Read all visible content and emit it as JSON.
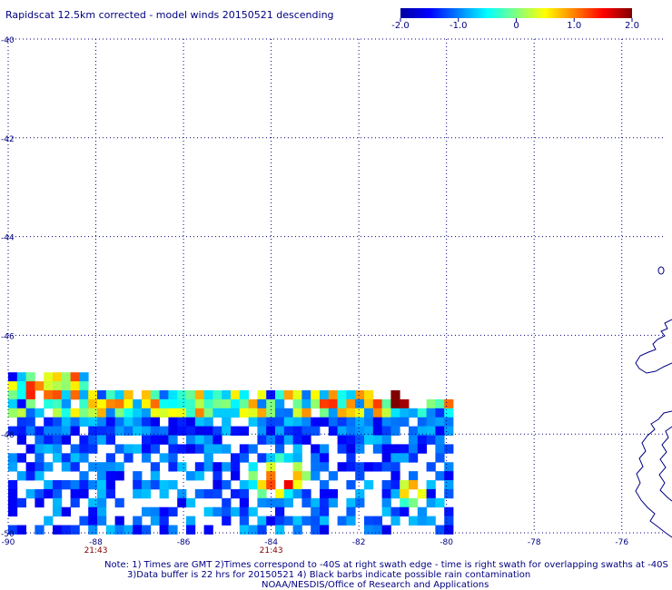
{
  "title": "Rapidscat 12.5km corrected - model winds 20150521 descending",
  "colorbar": {
    "stops": [
      "#0000a0",
      "#0000ff",
      "#0080ff",
      "#00ffff",
      "#80ff80",
      "#ffff00",
      "#ff8000",
      "#ff0000",
      "#800000"
    ],
    "ticks": [
      {
        "label": "-2.0",
        "value": -2.0
      },
      {
        "label": "-1.0",
        "value": -1.0
      },
      {
        "label": "0",
        "value": 0
      },
      {
        "label": "1.0",
        "value": 1.0
      },
      {
        "label": "2.0",
        "value": 2.0
      }
    ],
    "range": [
      -2.0,
      2.0
    ]
  },
  "map": {
    "lon_range": [
      -90,
      -75
    ],
    "lat_range": [
      -40,
      -50
    ],
    "grid_color": "#000080",
    "coast_color": "#000080",
    "lon_ticks": [
      {
        "label": "-90",
        "value": -90
      },
      {
        "label": "-88",
        "value": -88
      },
      {
        "label": "-86",
        "value": -86
      },
      {
        "label": "-84",
        "value": -84
      },
      {
        "label": "-82",
        "value": -82
      },
      {
        "label": "-80",
        "value": -80
      },
      {
        "label": "-78",
        "value": -78
      },
      {
        "label": "-76",
        "value": -76
      }
    ],
    "lat_ticks": [
      {
        "label": "-40",
        "value": -40
      },
      {
        "label": "-42",
        "value": -42
      },
      {
        "label": "-44",
        "value": -44
      },
      {
        "label": "-46",
        "value": -46
      },
      {
        "label": "-48",
        "value": -48
      },
      {
        "label": "-50",
        "value": -50
      }
    ],
    "times": [
      {
        "label": "21:43",
        "lon": -88
      },
      {
        "label": "21:43",
        "lon": -84
      }
    ],
    "time_color": "#800000"
  },
  "notes": [
    "Note: 1) Times are GMT 2)Times correspond to -40S at right swath edge - time is right swath for overlapping swaths at -40S",
    "3)Data buffer is 22 hrs for 20150521 4) Black barbs indicate possible rain contamination",
    "NOAA/NESDIS/Office of Research and Applications"
  ]
}
